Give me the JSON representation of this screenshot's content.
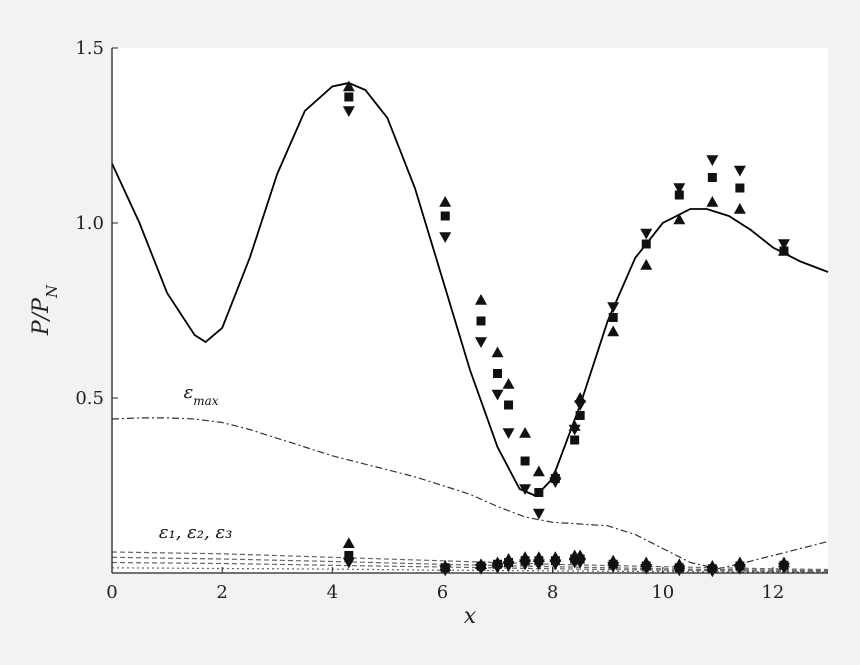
{
  "chart_data": {
    "type": "scatter",
    "title": "",
    "xlabel": "x",
    "ylabel": "P/P_N",
    "xlim": [
      0,
      13
    ],
    "ylim": [
      0,
      1.5
    ],
    "x_ticks": [
      0,
      2,
      4,
      6,
      8,
      10,
      12
    ],
    "y_ticks": [
      0.5,
      1.0,
      1.5
    ],
    "x_tick_labels": [
      "0",
      "2",
      "4",
      "6",
      "8",
      "10",
      "12"
    ],
    "y_tick_labels": [
      "0.5",
      "1.0",
      "1.5"
    ],
    "grid": false,
    "annotations": [
      {
        "text": "ε",
        "sub": "max",
        "x": 1.3,
        "y": 0.5
      },
      {
        "text": "ε₁, ε₂, ε₃",
        "x": 0.85,
        "y": 0.1
      }
    ],
    "series": [
      {
        "kind": "line",
        "style": "solid",
        "color": "#000000",
        "x": [
          0,
          0.5,
          1.0,
          1.5,
          1.7,
          2.0,
          2.5,
          3.0,
          3.5,
          4.0,
          4.3,
          4.6,
          5.0,
          5.5,
          6.0,
          6.5,
          7.0,
          7.4,
          7.7,
          8.0,
          8.5,
          9.0,
          9.5,
          10.0,
          10.5,
          10.8,
          11.2,
          11.6,
          12.0,
          12.5,
          13.0
        ],
        "y": [
          1.17,
          1.0,
          0.8,
          0.68,
          0.66,
          0.7,
          0.9,
          1.14,
          1.32,
          1.39,
          1.4,
          1.38,
          1.3,
          1.1,
          0.84,
          0.58,
          0.36,
          0.24,
          0.22,
          0.27,
          0.48,
          0.72,
          0.9,
          1.0,
          1.04,
          1.04,
          1.02,
          0.98,
          0.93,
          0.89,
          0.86
        ]
      },
      {
        "kind": "line",
        "style": "dashdot",
        "color": "#333333",
        "x": [
          0,
          0.5,
          1.0,
          1.5,
          2.0,
          2.5,
          3.0,
          3.5,
          4.0,
          4.5,
          5.0,
          5.5,
          6.0,
          6.5,
          7.0,
          7.5,
          8.0,
          8.5,
          9.0,
          9.5,
          10.0,
          10.5,
          11.0,
          11.5,
          12.0,
          12.5,
          13.0
        ],
        "y": [
          0.44,
          0.443,
          0.443,
          0.44,
          0.43,
          0.41,
          0.385,
          0.36,
          0.335,
          0.315,
          0.295,
          0.275,
          0.25,
          0.225,
          0.19,
          0.16,
          0.145,
          0.14,
          0.135,
          0.11,
          0.07,
          0.03,
          0.012,
          0.03,
          0.05,
          0.07,
          0.09
        ]
      },
      {
        "kind": "line",
        "style": "dashed",
        "color": "#666666",
        "x": [
          0,
          2,
          4,
          6,
          8,
          10,
          12,
          13
        ],
        "y": [
          0.06,
          0.055,
          0.045,
          0.035,
          0.025,
          0.018,
          0.012,
          0.01
        ]
      },
      {
        "kind": "line",
        "style": "dashed",
        "color": "#666666",
        "x": [
          0,
          2,
          4,
          6,
          8,
          10,
          12,
          13
        ],
        "y": [
          0.045,
          0.04,
          0.033,
          0.025,
          0.018,
          0.012,
          0.008,
          0.007
        ]
      },
      {
        "kind": "line",
        "style": "dashed",
        "color": "#666666",
        "x": [
          0,
          2,
          4,
          6,
          8,
          10,
          12,
          13
        ],
        "y": [
          0.03,
          0.027,
          0.022,
          0.017,
          0.012,
          0.008,
          0.005,
          0.004
        ]
      },
      {
        "kind": "line",
        "style": "dotted",
        "color": "#666666",
        "x": [
          0,
          2,
          4,
          6,
          8,
          10,
          12,
          13
        ],
        "y": [
          0.015,
          0.013,
          0.011,
          0.008,
          0.006,
          0.004,
          0.003,
          0.002
        ]
      },
      {
        "kind": "points",
        "marker": "triangle-up",
        "x": [
          4.3,
          6.05,
          6.7,
          7.0,
          7.2,
          7.5,
          7.75,
          8.05,
          8.4,
          8.5,
          9.1,
          9.7,
          10.3,
          10.9,
          11.4,
          12.2
        ],
        "y": [
          1.39,
          1.06,
          0.78,
          0.63,
          0.54,
          0.4,
          0.29,
          0.28,
          0.42,
          0.5,
          0.69,
          0.88,
          1.01,
          1.06,
          1.04,
          0.92
        ]
      },
      {
        "kind": "points",
        "marker": "square",
        "x": [
          4.3,
          6.05,
          6.7,
          7.0,
          7.2,
          7.5,
          7.75,
          8.05,
          8.4,
          8.5,
          9.1,
          9.7,
          10.3,
          10.9,
          11.4,
          12.2
        ],
        "y": [
          1.36,
          1.02,
          0.72,
          0.57,
          0.48,
          0.32,
          0.23,
          0.27,
          0.38,
          0.45,
          0.73,
          0.94,
          1.08,
          1.13,
          1.1,
          0.92
        ]
      },
      {
        "kind": "points",
        "marker": "triangle-down",
        "x": [
          4.3,
          6.05,
          6.7,
          7.0,
          7.2,
          7.5,
          7.75,
          8.05,
          8.4,
          8.5,
          9.1,
          9.7,
          10.3,
          10.9,
          11.4,
          12.2
        ],
        "y": [
          1.32,
          0.96,
          0.66,
          0.51,
          0.4,
          0.24,
          0.17,
          0.26,
          0.41,
          0.48,
          0.76,
          0.97,
          1.1,
          1.18,
          1.15,
          0.94
        ]
      },
      {
        "kind": "points",
        "marker": "triangle-up",
        "x": [
          4.3,
          6.05,
          6.7,
          7.0,
          7.2,
          7.5,
          7.75,
          8.05,
          8.4,
          8.5,
          9.1,
          9.7,
          10.3,
          10.9,
          11.4,
          12.2
        ],
        "y": [
          0.085,
          0.02,
          0.025,
          0.03,
          0.04,
          0.045,
          0.045,
          0.045,
          0.05,
          0.05,
          0.035,
          0.03,
          0.025,
          0.02,
          0.03,
          0.03
        ]
      },
      {
        "kind": "points",
        "marker": "square",
        "x": [
          4.3,
          6.05,
          6.7,
          7.0,
          7.2,
          7.5,
          7.75,
          8.05,
          8.4,
          8.5,
          9.1,
          9.7,
          10.3,
          10.9,
          11.4,
          12.2
        ],
        "y": [
          0.05,
          0.015,
          0.02,
          0.025,
          0.03,
          0.035,
          0.035,
          0.035,
          0.04,
          0.04,
          0.025,
          0.02,
          0.015,
          0.012,
          0.02,
          0.022
        ]
      },
      {
        "kind": "points",
        "marker": "triangle-down",
        "x": [
          4.3,
          6.05,
          6.7,
          7.0,
          7.2,
          7.5,
          7.75,
          8.05,
          8.4,
          8.5,
          9.1,
          9.7,
          10.3,
          10.9,
          11.4,
          12.2
        ],
        "y": [
          0.03,
          0.008,
          0.012,
          0.015,
          0.02,
          0.025,
          0.025,
          0.025,
          0.03,
          0.03,
          0.018,
          0.012,
          0.008,
          0.005,
          0.012,
          0.015
        ]
      }
    ]
  }
}
